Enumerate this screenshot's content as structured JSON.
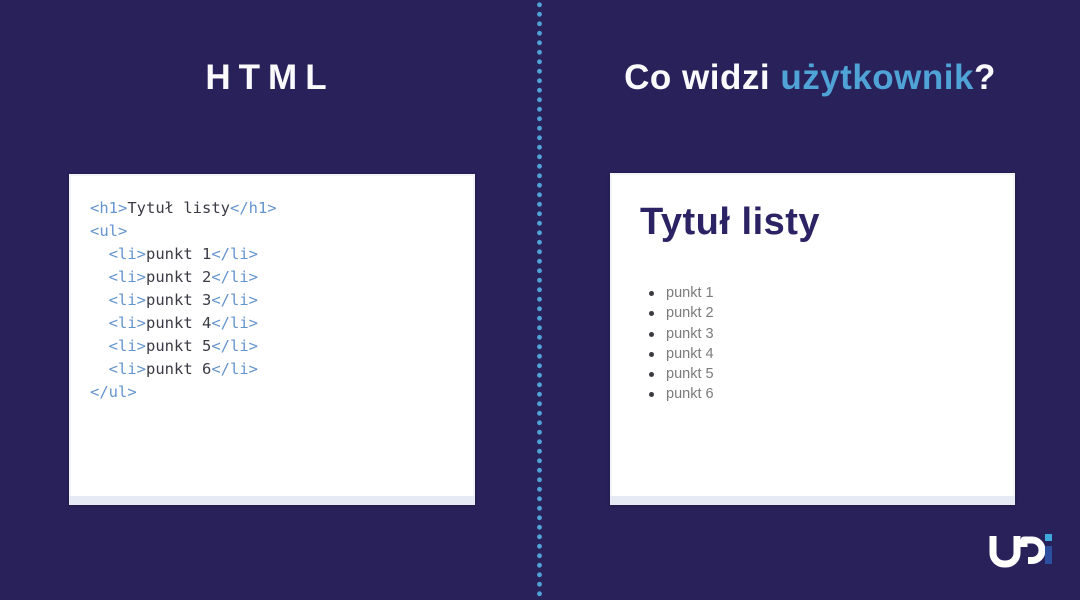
{
  "page": {
    "background_color": "#29215A",
    "divider_dot_color": "#4FA3D7",
    "accent_blue": "#4FA3D7"
  },
  "left": {
    "title": "HTML",
    "code_tag_color": "#6494CE",
    "code_text_color": "#3B3B46",
    "code": [
      [
        [
          "tag",
          "<h1>"
        ],
        [
          "txt",
          "Tytuł listy"
        ],
        [
          "tag",
          "</h1>"
        ]
      ],
      [
        [
          "tag",
          "<ul>"
        ]
      ],
      [
        [
          "txt",
          "  "
        ],
        [
          "tag",
          "<li>"
        ],
        [
          "txt",
          "punkt 1"
        ],
        [
          "tag",
          "</li>"
        ]
      ],
      [
        [
          "txt",
          "  "
        ],
        [
          "tag",
          "<li>"
        ],
        [
          "txt",
          "punkt 2"
        ],
        [
          "tag",
          "</li>"
        ]
      ],
      [
        [
          "txt",
          "  "
        ],
        [
          "tag",
          "<li>"
        ],
        [
          "txt",
          "punkt 3"
        ],
        [
          "tag",
          "</li>"
        ]
      ],
      [
        [
          "txt",
          "  "
        ],
        [
          "tag",
          "<li>"
        ],
        [
          "txt",
          "punkt 4"
        ],
        [
          "tag",
          "</li>"
        ]
      ],
      [
        [
          "txt",
          "  "
        ],
        [
          "tag",
          "<li>"
        ],
        [
          "txt",
          "punkt 5"
        ],
        [
          "tag",
          "</li>"
        ]
      ],
      [
        [
          "txt",
          "  "
        ],
        [
          "tag",
          "<li>"
        ],
        [
          "txt",
          "punkt 6"
        ],
        [
          "tag",
          "</li>"
        ]
      ],
      [
        [
          "tag",
          "</ul>"
        ]
      ]
    ]
  },
  "right": {
    "title_parts": [
      {
        "text": "Co widzi ",
        "accent": false
      },
      {
        "text": "użytkownik",
        "accent": true
      },
      {
        "text": "?",
        "accent": false
      }
    ],
    "card": {
      "heading": "Tytuł listy",
      "heading_color": "#2B2363",
      "list_text_color": "#7B7B7B",
      "items": [
        "punkt 1",
        "punkt 2",
        "punkt 3",
        "punkt 4",
        "punkt 5",
        "punkt 6"
      ]
    }
  },
  "logo": {
    "name": "udi-logo",
    "letter_color": "#FFFFFF",
    "dot_color": "#3FA8DC",
    "stem_color": "#2C4F9F"
  }
}
